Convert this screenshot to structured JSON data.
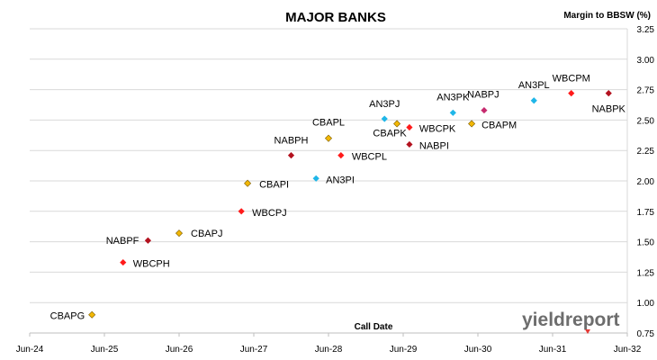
{
  "chart_data": {
    "type": "scatter",
    "title": "MAJOR BANKS",
    "ylabel": "Margin to BBSW (%)",
    "xlabel": "Call Date",
    "ylim": [
      0.75,
      3.25
    ],
    "yticks": [
      "0.75",
      "1.00",
      "1.25",
      "1.50",
      "1.75",
      "2.00",
      "2.25",
      "2.50",
      "2.75",
      "3.00",
      "3.25"
    ],
    "xlim": [
      "2024-06",
      "2032-06"
    ],
    "xticks": [
      "Jun-24",
      "Jun-25",
      "Jun-26",
      "Jun-27",
      "Jun-28",
      "Jun-29",
      "Jun-30",
      "Jun-31",
      "Jun-32"
    ],
    "grid": "horizontal",
    "colors": {
      "CBA": "#f2b705",
      "WBC": "#ff1a1a",
      "NAB": "#b3121f",
      "ANZ": "#1fb6e8",
      "NABPM": "#c62a6e"
    },
    "points": [
      {
        "label": "CBAPG",
        "x": "2025-04",
        "y": 0.9,
        "issuer": "CBA"
      },
      {
        "label": "WBCPH",
        "x": "2025-09",
        "y": 1.33,
        "issuer": "WBC"
      },
      {
        "label": "NABPF",
        "x": "2026-01",
        "y": 1.51,
        "issuer": "NAB"
      },
      {
        "label": "CBAPJ",
        "x": "2026-06",
        "y": 1.57,
        "issuer": "CBA"
      },
      {
        "label": "WBCPJ",
        "x": "2027-04",
        "y": 1.75,
        "issuer": "WBC"
      },
      {
        "label": "CBAPI",
        "x": "2027-05",
        "y": 1.98,
        "issuer": "CBA"
      },
      {
        "label": "NABPH",
        "x": "2027-12",
        "y": 2.21,
        "issuer": "NAB"
      },
      {
        "label": "AN3PI",
        "x": "2028-04",
        "y": 2.02,
        "issuer": "ANZ"
      },
      {
        "label": "CBAPL",
        "x": "2028-06",
        "y": 2.35,
        "issuer": "CBA"
      },
      {
        "label": "WBCPL",
        "x": "2028-08",
        "y": 2.21,
        "issuer": "WBC"
      },
      {
        "label": "AN3PJ",
        "x": "2029-03",
        "y": 2.51,
        "issuer": "ANZ"
      },
      {
        "label": "CBAPK",
        "x": "2029-05",
        "y": 2.47,
        "issuer": "CBA"
      },
      {
        "label": "WBCPK",
        "x": "2029-07",
        "y": 2.44,
        "issuer": "WBC"
      },
      {
        "label": "NABPI",
        "x": "2029-07",
        "y": 2.3,
        "issuer": "NAB"
      },
      {
        "label": "AN3PK",
        "x": "2030-02",
        "y": 2.56,
        "issuer": "ANZ"
      },
      {
        "label": "CBAPM",
        "x": "2030-05",
        "y": 2.47,
        "issuer": "CBA"
      },
      {
        "label": "NABPJ",
        "x": "2030-07",
        "y": 2.58,
        "issuer": "NABPM"
      },
      {
        "label": "AN3PL",
        "x": "2031-03",
        "y": 2.66,
        "issuer": "ANZ"
      },
      {
        "label": "WBCPM",
        "x": "2031-09",
        "y": 2.72,
        "issuer": "WBC"
      },
      {
        "label": "NABPK",
        "x": "2032-03",
        "y": 2.72,
        "issuer": "NAB"
      }
    ]
  },
  "logo": {
    "text": "yieldreport"
  }
}
